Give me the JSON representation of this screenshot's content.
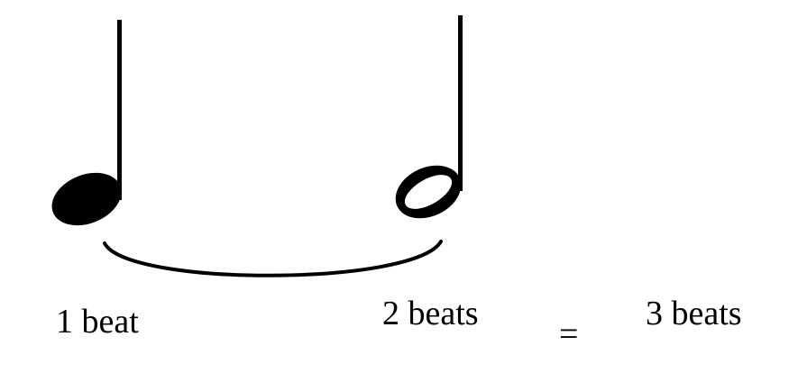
{
  "labels": {
    "quarter_note": "1 beat",
    "half_note": "2 beats",
    "equals": "=",
    "total": "3 beats"
  },
  "colors": {
    "ink": "#000000",
    "background": "#ffffff"
  },
  "icons": {
    "quarter_note": "quarter-note-icon",
    "half_note": "half-note-icon",
    "tie": "tie-curve-icon"
  }
}
